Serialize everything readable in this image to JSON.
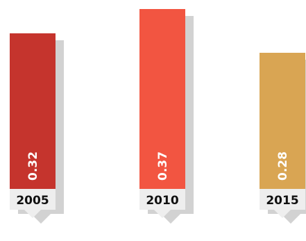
{
  "chart_data": {
    "type": "bar",
    "categories": [
      "2005",
      "2010",
      "2015"
    ],
    "values": [
      0.32,
      0.37,
      0.28
    ],
    "value_labels": [
      "0.32",
      "0.37",
      "0.28"
    ],
    "colors": [
      "#c5342d",
      "#f25541",
      "#d9a553"
    ],
    "shadow_color": "#d2d2d2",
    "label_box_color": "#eeeeee",
    "title": "",
    "xlabel": "",
    "ylabel": "",
    "grid": false,
    "legend": "none"
  }
}
